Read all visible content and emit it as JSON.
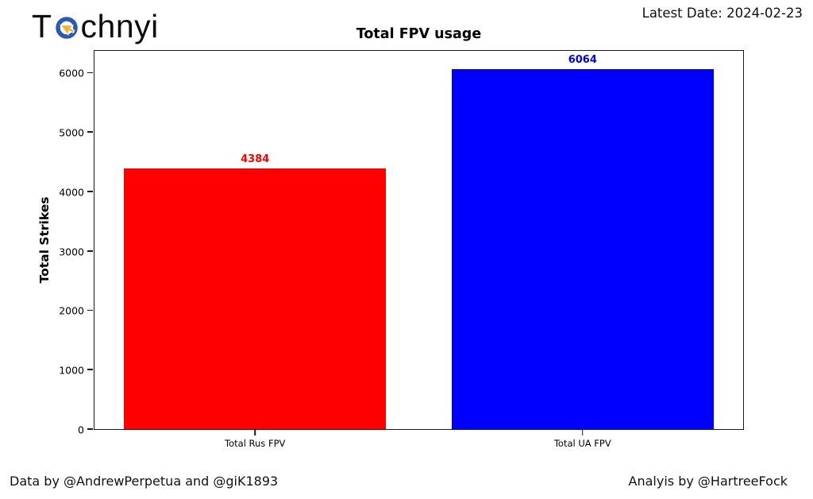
{
  "header": {
    "logo": {
      "prefix": "T",
      "suffix": "chnyi",
      "icon": "cursor-circle-icon",
      "ring_color": "#2a5ab5",
      "arrow_color": "#f1b32b"
    },
    "latest_date": "Latest Date: 2024-02-23"
  },
  "footer": {
    "data_credit": "Data by @AndrewPerpetua and @giK1893",
    "analysis_credit": "Analyis by @HartreeFock"
  },
  "chart_data": {
    "type": "bar",
    "title": "Total FPV usage",
    "xlabel": "",
    "ylabel": "Total Strikes",
    "categories": [
      "Total Rus FPV",
      "Total UA FPV"
    ],
    "values": [
      4384,
      6064
    ],
    "bar_colors": [
      "#ff0000",
      "#0000ff"
    ],
    "value_label_colors": [
      "#ff0000",
      "#0000ff"
    ],
    "yticks": [
      0,
      1000,
      2000,
      3000,
      4000,
      5000,
      6000
    ],
    "ylim": [
      0,
      6367
    ],
    "grid": false,
    "legend": null,
    "layout": {
      "bar_centers_pct": [
        24.75,
        75.25
      ],
      "bar_width_pct": 40.4
    }
  }
}
